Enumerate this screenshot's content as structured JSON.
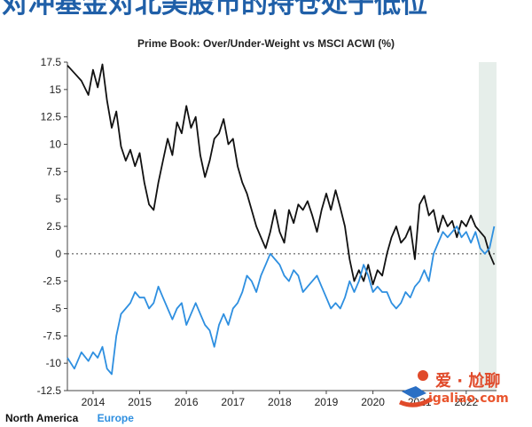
{
  "page": {
    "headline": "对冲基金对北美股市的持仓处于低位",
    "watermark_line1": "爱 · 尬聊",
    "watermark_line2": "igaliao.com"
  },
  "chart_data": {
    "type": "line",
    "title": "Prime Book: Over/Under-Weight vs MSCI ACWI (%)",
    "xlabel": "",
    "ylabel": "",
    "xlim": [
      2013.45,
      2022.65
    ],
    "ylim": [
      -12.5,
      17.5
    ],
    "yticks": [
      17.5,
      15,
      12.5,
      10,
      7.5,
      5,
      2.5,
      0,
      -2.5,
      -5,
      -7.5,
      -10,
      -12.5
    ],
    "ytick_labels": [
      "17.5",
      "15",
      "12.5",
      "10",
      "7.5",
      "5",
      "2.5",
      "0",
      "-2.5",
      "-5",
      "-7.5",
      "-10",
      "-12.5"
    ],
    "xticks": [
      2014,
      2015,
      2016,
      2017,
      2018,
      2019,
      2020,
      2021,
      2022
    ],
    "xtick_labels": [
      "2014",
      "2015",
      "2016",
      "2017",
      "2018",
      "2019",
      "2020",
      "2021",
      "2022"
    ],
    "zero_line": "dotted",
    "grid": false,
    "legend": "bottom-left",
    "highlight_band": [
      2022.27,
      2022.65
    ],
    "series": [
      {
        "name": "North America",
        "color": "#111111",
        "x": [
          2013.45,
          2013.6,
          2013.75,
          2013.9,
          2014.0,
          2014.1,
          2014.2,
          2014.3,
          2014.4,
          2014.5,
          2014.6,
          2014.7,
          2014.8,
          2014.9,
          2015.0,
          2015.1,
          2015.2,
          2015.3,
          2015.4,
          2015.5,
          2015.6,
          2015.7,
          2015.8,
          2015.9,
          2016.0,
          2016.1,
          2016.2,
          2016.3,
          2016.4,
          2016.5,
          2016.6,
          2016.7,
          2016.8,
          2016.9,
          2017.0,
          2017.1,
          2017.2,
          2017.3,
          2017.4,
          2017.5,
          2017.6,
          2017.7,
          2017.8,
          2017.9,
          2018.0,
          2018.1,
          2018.2,
          2018.3,
          2018.4,
          2018.5,
          2018.6,
          2018.7,
          2018.8,
          2018.9,
          2019.0,
          2019.1,
          2019.2,
          2019.3,
          2019.4,
          2019.5,
          2019.6,
          2019.7,
          2019.8,
          2019.9,
          2020.0,
          2020.1,
          2020.2,
          2020.3,
          2020.4,
          2020.5,
          2020.6,
          2020.7,
          2020.8,
          2020.9,
          2021.0,
          2021.1,
          2021.2,
          2021.3,
          2021.4,
          2021.5,
          2021.6,
          2021.7,
          2021.8,
          2021.9,
          2022.0,
          2022.1,
          2022.2,
          2022.3,
          2022.4,
          2022.5,
          2022.6
        ],
        "y": [
          17.2,
          16.5,
          15.8,
          14.5,
          16.8,
          15.2,
          17.3,
          14.0,
          11.5,
          13.0,
          9.8,
          8.5,
          9.5,
          8.0,
          9.2,
          6.5,
          4.5,
          4.0,
          6.5,
          8.5,
          10.5,
          9.0,
          12.0,
          11.0,
          13.5,
          11.5,
          12.5,
          9.0,
          7.0,
          8.5,
          10.5,
          11.0,
          12.3,
          10.0,
          10.5,
          8.0,
          6.5,
          5.5,
          4.0,
          2.5,
          1.5,
          0.5,
          2.0,
          4.0,
          2.0,
          1.0,
          4.0,
          2.8,
          4.5,
          4.0,
          4.8,
          3.5,
          2.0,
          4.0,
          5.5,
          4.0,
          5.8,
          4.2,
          2.5,
          -0.5,
          -2.5,
          -1.5,
          -2.5,
          -1.0,
          -2.8,
          -1.5,
          -2.0,
          0.0,
          1.5,
          2.5,
          1.0,
          1.5,
          2.5,
          -0.5,
          4.5,
          5.3,
          3.5,
          4.0,
          2.0,
          3.5,
          2.5,
          3.0,
          1.5,
          3.0,
          2.5,
          3.5,
          2.5,
          2.0,
          1.5,
          0.0,
          -1.0
        ]
      },
      {
        "name": "Europe",
        "color": "#2e8fe0",
        "x": [
          2013.45,
          2013.6,
          2013.75,
          2013.9,
          2014.0,
          2014.1,
          2014.2,
          2014.3,
          2014.4,
          2014.5,
          2014.6,
          2014.7,
          2014.8,
          2014.9,
          2015.0,
          2015.1,
          2015.2,
          2015.3,
          2015.4,
          2015.5,
          2015.6,
          2015.7,
          2015.8,
          2015.9,
          2016.0,
          2016.1,
          2016.2,
          2016.3,
          2016.4,
          2016.5,
          2016.6,
          2016.7,
          2016.8,
          2016.9,
          2017.0,
          2017.1,
          2017.2,
          2017.3,
          2017.4,
          2017.5,
          2017.6,
          2017.7,
          2017.8,
          2017.9,
          2018.0,
          2018.1,
          2018.2,
          2018.3,
          2018.4,
          2018.5,
          2018.6,
          2018.7,
          2018.8,
          2018.9,
          2019.0,
          2019.1,
          2019.2,
          2019.3,
          2019.4,
          2019.5,
          2019.6,
          2019.7,
          2019.8,
          2019.9,
          2020.0,
          2020.1,
          2020.2,
          2020.3,
          2020.4,
          2020.5,
          2020.6,
          2020.7,
          2020.8,
          2020.9,
          2021.0,
          2021.1,
          2021.2,
          2021.3,
          2021.4,
          2021.5,
          2021.6,
          2021.7,
          2021.8,
          2021.9,
          2022.0,
          2022.1,
          2022.2,
          2022.3,
          2022.4,
          2022.5,
          2022.6
        ],
        "y": [
          -9.5,
          -10.5,
          -9.0,
          -9.8,
          -9.0,
          -9.5,
          -8.5,
          -10.5,
          -11.0,
          -7.5,
          -5.5,
          -5.0,
          -4.5,
          -3.5,
          -4.0,
          -4.0,
          -5.0,
          -4.5,
          -3.0,
          -4.0,
          -5.0,
          -6.0,
          -5.0,
          -4.5,
          -6.5,
          -5.5,
          -4.5,
          -5.5,
          -6.5,
          -7.0,
          -8.5,
          -6.5,
          -5.5,
          -6.5,
          -5.0,
          -4.5,
          -3.5,
          -2.0,
          -2.5,
          -3.5,
          -2.0,
          -1.0,
          0.0,
          -0.5,
          -1.0,
          -2.0,
          -2.5,
          -1.5,
          -2.0,
          -3.5,
          -3.0,
          -2.5,
          -2.0,
          -3.0,
          -4.0,
          -5.0,
          -4.5,
          -5.0,
          -4.0,
          -2.5,
          -3.5,
          -2.5,
          -1.0,
          -2.0,
          -3.5,
          -3.0,
          -3.5,
          -3.5,
          -4.5,
          -5.0,
          -4.5,
          -3.5,
          -4.0,
          -3.0,
          -2.5,
          -1.5,
          -2.5,
          0.0,
          1.0,
          2.0,
          1.5,
          2.0,
          2.5,
          1.5,
          2.0,
          1.0,
          2.0,
          0.5,
          0.0,
          0.5,
          2.5
        ]
      }
    ]
  }
}
